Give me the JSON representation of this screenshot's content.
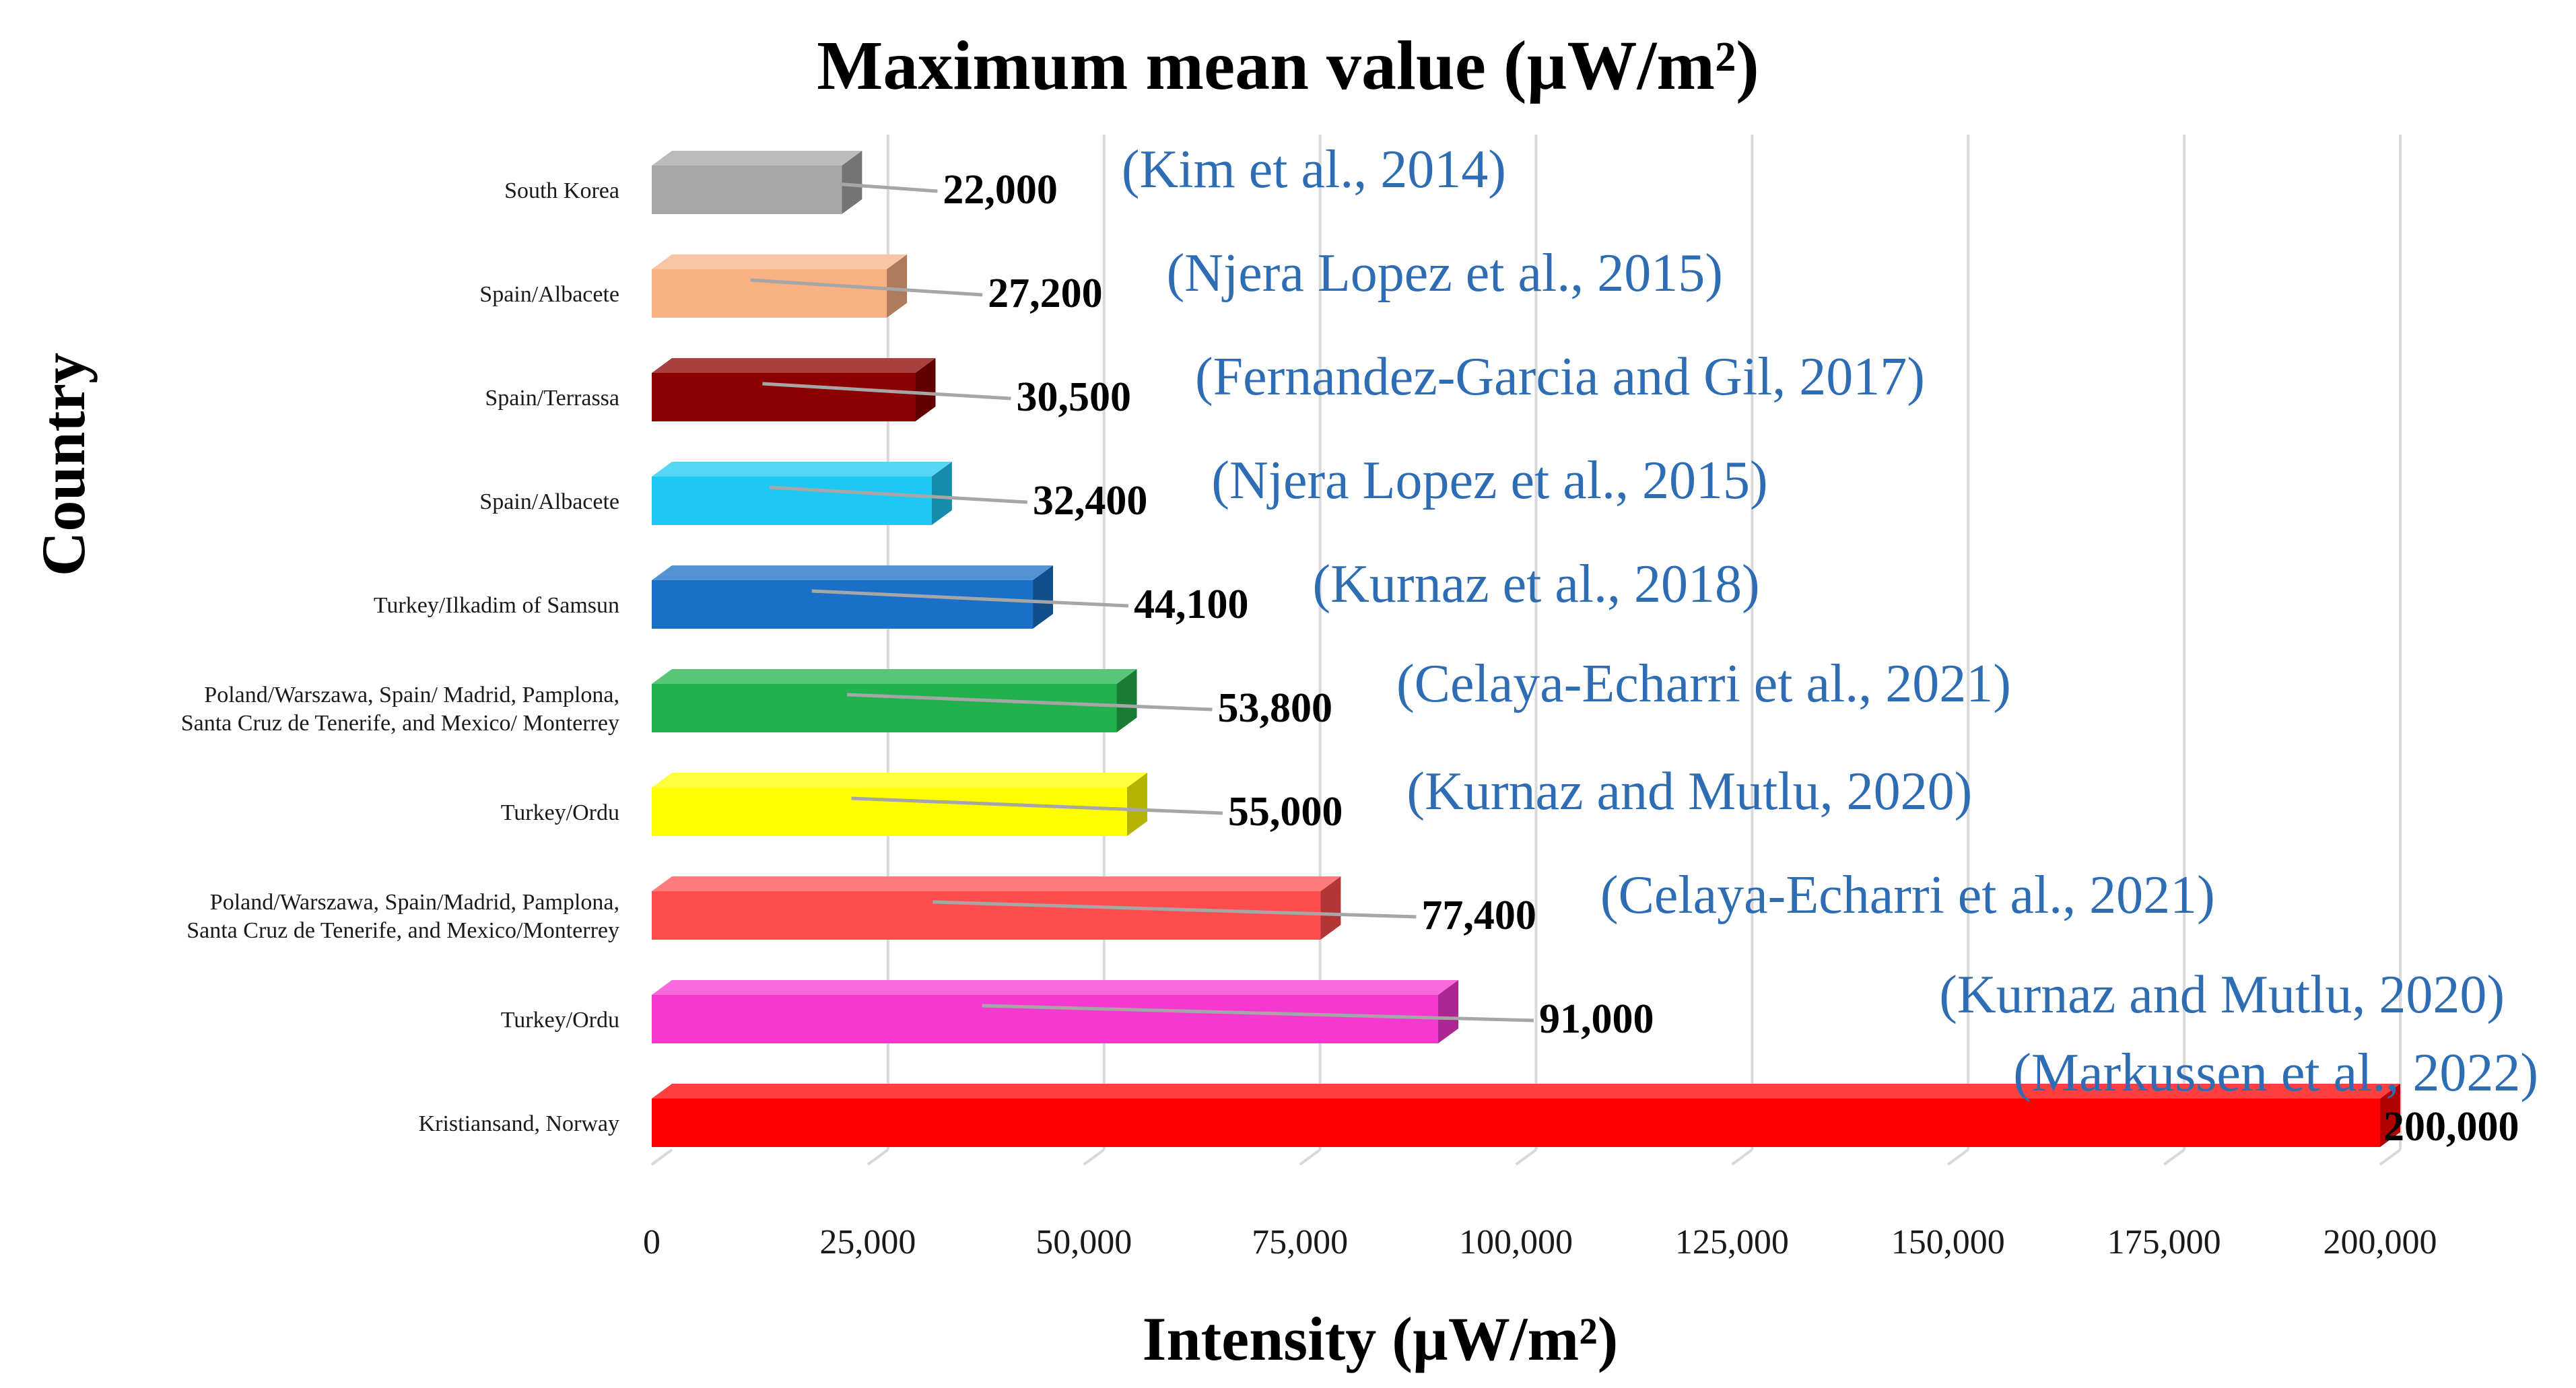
{
  "chart_data": {
    "type": "bar",
    "orientation": "horizontal",
    "title": "Maximum mean value (µW/m²)",
    "xlabel": "Intensity (µW/m²)",
    "ylabel": "Country",
    "xlim": [
      0,
      200000
    ],
    "xticks": [
      0,
      25000,
      50000,
      75000,
      100000,
      125000,
      150000,
      175000,
      200000
    ],
    "xtick_labels": [
      "0",
      "25,000",
      "50,000",
      "75,000",
      "100,000",
      "125,000",
      "150,000",
      "175,000",
      "200,000"
    ],
    "grid": true,
    "bars": [
      {
        "category": [
          "South Korea"
        ],
        "value": 22000,
        "value_label": "22,000",
        "reference": "(Kim  et al., 2014)",
        "color": "#a6a6a6"
      },
      {
        "category": [
          "Spain/Albacete"
        ],
        "value": 27200,
        "value_label": "27,200",
        "reference": "(Njera Lopez et al., 2015)",
        "color": "#f8b183"
      },
      {
        "category": [
          "Spain/Terrassa"
        ],
        "value": 30500,
        "value_label": "30,500",
        "reference": "(Fernandez-Garcia and Gil, 2017)",
        "color": "#8b0000"
      },
      {
        "category": [
          "Spain/Albacete"
        ],
        "value": 32400,
        "value_label": "32,400",
        "reference": "(Njera Lopez et al., 2015)",
        "color": "#1ec8f4"
      },
      {
        "category": [
          "Turkey/Ilkadim of Samsun"
        ],
        "value": 44100,
        "value_label": "44,100",
        "reference": "(Kurnaz  et al., 2018)",
        "color": "#1a6fc6"
      },
      {
        "category": [
          "Poland/Warszawa, Spain/ Madrid, Pamplona,",
          "Santa Cruz de Tenerife, and Mexico/ Monterrey"
        ],
        "value": 53800,
        "value_label": "53,800",
        "reference": "(Celaya-Echarri et al., 2021)",
        "color": "#22b14c"
      },
      {
        "category": [
          "Turkey/Ordu"
        ],
        "value": 55000,
        "value_label": "55,000",
        "reference": "(Kurnaz  and Mutlu, 2020)",
        "color": "#ffff00"
      },
      {
        "category": [
          "Poland/Warszawa, Spain/Madrid, Pamplona,",
          "Santa Cruz de Tenerife, and Mexico/Monterrey"
        ],
        "value": 77400,
        "value_label": "77,400",
        "reference": "(Celaya-Echarri et al., 2021)",
        "color": "#ff4d4d"
      },
      {
        "category": [
          "Turkey/Ordu"
        ],
        "value": 91000,
        "value_label": "91,000",
        "reference": "(Kurnaz and Mutlu, 2020)",
        "color": "#f538cf"
      },
      {
        "category": [
          "Kristiansand, Norway"
        ],
        "value": 200000,
        "value_label": "200,000",
        "reference": "(Markussen et al., 2022)",
        "color": "#ff0000"
      }
    ]
  }
}
